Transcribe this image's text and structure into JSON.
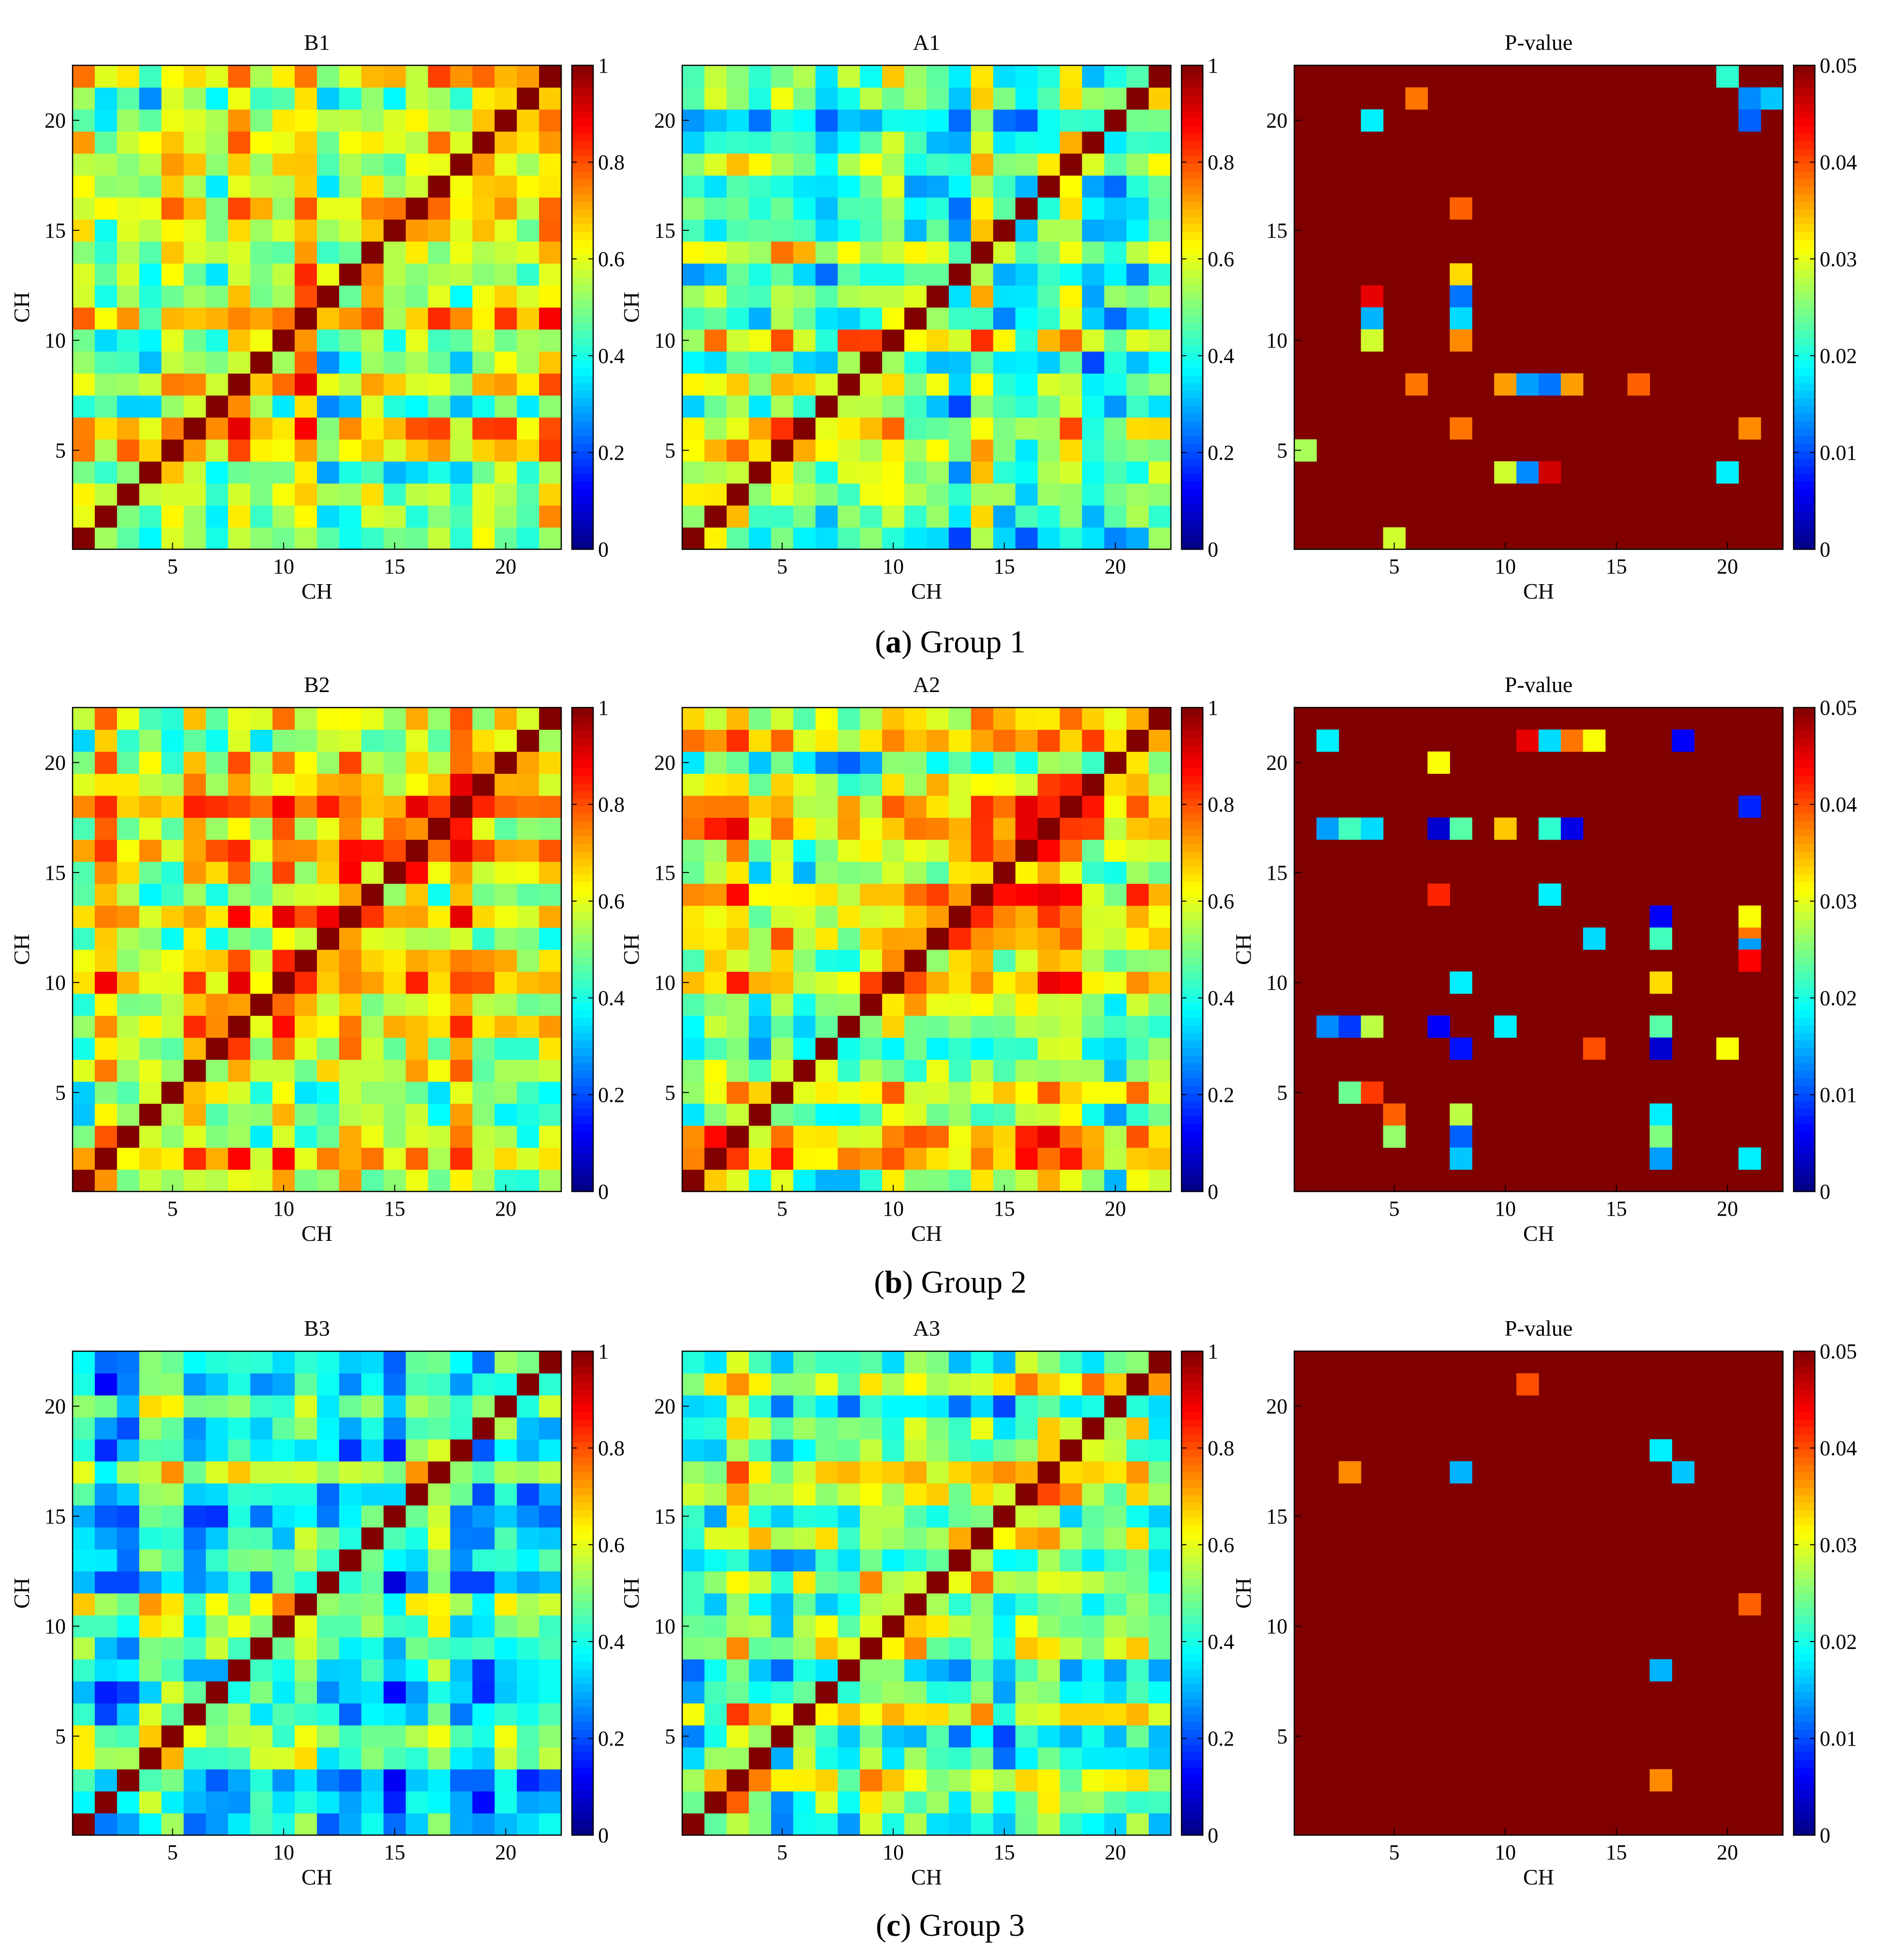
{
  "colormap": {
    "name": "jet",
    "stops": [
      "#000080",
      "#0000ff",
      "#00ffff",
      "#ffff00",
      "#ff0000",
      "#800000"
    ]
  },
  "groups": [
    {
      "caption_letter": "a",
      "caption_text": " Group 1"
    },
    {
      "caption_letter": "b",
      "caption_text": " Group 2"
    },
    {
      "caption_letter": "c",
      "caption_text": " Group 3"
    }
  ],
  "chart_data": [
    {
      "type": "heatmap",
      "kind": "corr",
      "seed": 11,
      "level": 0.6,
      "group": 0,
      "title": "B1",
      "xlabel": "CH",
      "ylabel": "CH",
      "n": 22,
      "xticks": [
        5,
        10,
        15,
        20
      ],
      "yticks": [
        5,
        10,
        15,
        20
      ],
      "clim": [
        0,
        1
      ],
      "cbar_ticks": [
        "0",
        "0.2",
        "0.4",
        "0.6",
        "0.8",
        "1"
      ],
      "note": "22x22 correlation matrix, diagonal = 1; off-diagonal values approx 0.35-0.85"
    },
    {
      "type": "heatmap",
      "kind": "corr",
      "seed": 23,
      "level": 0.5,
      "group": 0,
      "title": "A1",
      "xlabel": "CH",
      "ylabel": "CH",
      "n": 22,
      "xticks": [
        5,
        10,
        15,
        20
      ],
      "yticks": [
        5,
        10,
        15,
        20
      ],
      "clim": [
        0,
        1
      ],
      "cbar_ticks": [
        "0",
        "0.2",
        "0.4",
        "0.6",
        "0.8",
        "1"
      ],
      "note": "22x22 correlation matrix, diagonal = 1; off-diagonal values approx 0.3-0.8"
    },
    {
      "type": "heatmap",
      "kind": "pval",
      "group": 0,
      "title": "P-value",
      "xlabel": "CH",
      "ylabel": "",
      "n": 22,
      "xticks": [
        5,
        10,
        15,
        20
      ],
      "yticks": [
        5,
        10,
        15,
        20
      ],
      "clim": [
        0,
        0.05
      ],
      "cbar_ticks": [
        "0",
        "0.01",
        "0.02",
        "0.03",
        "0.04",
        "0.05"
      ],
      "background": 0.05,
      "cells": [
        [
          20,
          22,
          0.021
        ],
        [
          21,
          21,
          0.013
        ],
        [
          22,
          21,
          0.016
        ],
        [
          21,
          20,
          0.011
        ],
        [
          6,
          21,
          0.038
        ],
        [
          4,
          20,
          0.018
        ],
        [
          8,
          16,
          0.039
        ],
        [
          8,
          13,
          0.033
        ],
        [
          4,
          12,
          0.045
        ],
        [
          8,
          12,
          0.012
        ],
        [
          4,
          11,
          0.015
        ],
        [
          8,
          11,
          0.017
        ],
        [
          4,
          10,
          0.029
        ],
        [
          8,
          10,
          0.037
        ],
        [
          6,
          8,
          0.038
        ],
        [
          10,
          8,
          0.036
        ],
        [
          11,
          8,
          0.014
        ],
        [
          12,
          8,
          0.012
        ],
        [
          13,
          8,
          0.036
        ],
        [
          16,
          8,
          0.039
        ],
        [
          8,
          6,
          0.038
        ],
        [
          21,
          6,
          0.037
        ],
        [
          1,
          5,
          0.027
        ],
        [
          10,
          4,
          0.029
        ],
        [
          11,
          4,
          0.013
        ],
        [
          12,
          4,
          0.046
        ],
        [
          20,
          4,
          0.018
        ],
        [
          5,
          1,
          0.029
        ]
      ]
    },
    {
      "type": "heatmap",
      "kind": "corr",
      "seed": 37,
      "level": 0.66,
      "group": 1,
      "title": "B2",
      "xlabel": "CH",
      "ylabel": "CH",
      "n": 22,
      "xticks": [
        5,
        10,
        15,
        20
      ],
      "yticks": [
        5,
        10,
        15,
        20
      ],
      "clim": [
        0,
        1
      ],
      "cbar_ticks": [
        "0",
        "0.2",
        "0.4",
        "0.6",
        "0.8",
        "1"
      ],
      "note": "22x22 correlation matrix, diagonal = 1; off-diagonal values approx 0.4-0.9"
    },
    {
      "type": "heatmap",
      "kind": "corr",
      "seed": 41,
      "level": 0.55,
      "group": 1,
      "title": "A2",
      "xlabel": "CH",
      "ylabel": "CH",
      "n": 22,
      "xticks": [
        5,
        10,
        15,
        20
      ],
      "yticks": [
        5,
        10,
        15,
        20
      ],
      "clim": [
        0,
        1
      ],
      "cbar_ticks": [
        "0",
        "0.2",
        "0.4",
        "0.6",
        "0.8",
        "1"
      ],
      "note": "22x22 correlation matrix, diagonal = 1; off-diagonal values approx 0.2-0.85"
    },
    {
      "type": "heatmap",
      "kind": "pval",
      "group": 1,
      "title": "P-value",
      "xlabel": "CH",
      "ylabel": "CH",
      "n": 22,
      "xticks": [
        5,
        10,
        15,
        20
      ],
      "yticks": [
        5,
        10,
        15,
        20
      ],
      "clim": [
        0,
        0.05
      ],
      "cbar_ticks": [
        "0",
        "0.01",
        "0.02",
        "0.03",
        "0.04",
        "0.05"
      ],
      "background": 0.05,
      "cells": [
        [
          2,
          21,
          0.018
        ],
        [
          11,
          21,
          0.045
        ],
        [
          12,
          21,
          0.017
        ],
        [
          13,
          21,
          0.038
        ],
        [
          14,
          21,
          0.031
        ],
        [
          18,
          21,
          0.006
        ],
        [
          7,
          20,
          0.031
        ],
        [
          21,
          18,
          0.008
        ],
        [
          2,
          17,
          0.014
        ],
        [
          3,
          17,
          0.022
        ],
        [
          4,
          17,
          0.017
        ],
        [
          7,
          17,
          0.004
        ],
        [
          8,
          17,
          0.023
        ],
        [
          10,
          17,
          0.034
        ],
        [
          12,
          17,
          0.021
        ],
        [
          13,
          17,
          0.005
        ],
        [
          7,
          14,
          0.042
        ],
        [
          12,
          14,
          0.018
        ],
        [
          17,
          13,
          0.006
        ],
        [
          21,
          13,
          0.031
        ],
        [
          21,
          12,
          0.038
        ],
        [
          14,
          12,
          0.017
        ],
        [
          17,
          12,
          0.022
        ],
        [
          21,
          11.5,
          0.014
        ],
        [
          21,
          11,
          0.044
        ],
        [
          8,
          10,
          0.018
        ],
        [
          17,
          10,
          0.033
        ],
        [
          2,
          8,
          0.013
        ],
        [
          3,
          8,
          0.009
        ],
        [
          4,
          8,
          0.028
        ],
        [
          7,
          8,
          0.006
        ],
        [
          10,
          8,
          0.018
        ],
        [
          17,
          8,
          0.023
        ],
        [
          8,
          7,
          0.007
        ],
        [
          14,
          7,
          0.04
        ],
        [
          17,
          7,
          0.004
        ],
        [
          20,
          7,
          0.031
        ],
        [
          3,
          5,
          0.024
        ],
        [
          4,
          5,
          0.041
        ],
        [
          5,
          4,
          0.039
        ],
        [
          8,
          4,
          0.028
        ],
        [
          5,
          3,
          0.026
        ],
        [
          8,
          3,
          0.011
        ],
        [
          8,
          2,
          0.016
        ],
        [
          17,
          4,
          0.018
        ],
        [
          17,
          3,
          0.025
        ],
        [
          17,
          2,
          0.014
        ],
        [
          21,
          2,
          0.018
        ]
      ]
    },
    {
      "type": "heatmap",
      "kind": "corr",
      "seed": 53,
      "level": 0.48,
      "group": 2,
      "title": "B3",
      "xlabel": "CH",
      "ylabel": "CH",
      "n": 22,
      "xticks": [
        5,
        10,
        15,
        20
      ],
      "yticks": [
        5,
        10,
        15,
        20
      ],
      "clim": [
        0,
        1
      ],
      "cbar_ticks": [
        "0",
        "0.2",
        "0.4",
        "0.6",
        "0.8",
        "1"
      ],
      "note": "22x22 correlation matrix, diagonal = 1; off-diagonal values approx 0.2-0.8"
    },
    {
      "type": "heatmap",
      "kind": "corr",
      "seed": 67,
      "level": 0.55,
      "group": 2,
      "title": "A3",
      "xlabel": "CH",
      "ylabel": "CH",
      "n": 22,
      "xticks": [
        5,
        10,
        15,
        20
      ],
      "yticks": [
        5,
        10,
        15,
        20
      ],
      "clim": [
        0,
        1
      ],
      "cbar_ticks": [
        "0",
        "0.2",
        "0.4",
        "0.6",
        "0.8",
        "1"
      ],
      "note": "22x22 correlation matrix, diagonal = 1; off-diagonal values approx 0.3-0.85"
    },
    {
      "type": "heatmap",
      "kind": "pval",
      "group": 2,
      "title": "P-value",
      "xlabel": "CH",
      "ylabel": "CH",
      "n": 22,
      "xticks": [
        5,
        10,
        15,
        20
      ],
      "yticks": [
        5,
        10,
        15,
        20
      ],
      "clim": [
        0,
        0.05
      ],
      "cbar_ticks": [
        "0",
        "0.01",
        "0.02",
        "0.03",
        "0.04",
        "0.05"
      ],
      "background": 0.05,
      "cells": [
        [
          11,
          21,
          0.04
        ],
        [
          17,
          18,
          0.018
        ],
        [
          18,
          17,
          0.016
        ],
        [
          3,
          17,
          0.037
        ],
        [
          8,
          17,
          0.015
        ],
        [
          21,
          11,
          0.039
        ],
        [
          17,
          8,
          0.015
        ],
        [
          17,
          3,
          0.037
        ]
      ]
    }
  ]
}
